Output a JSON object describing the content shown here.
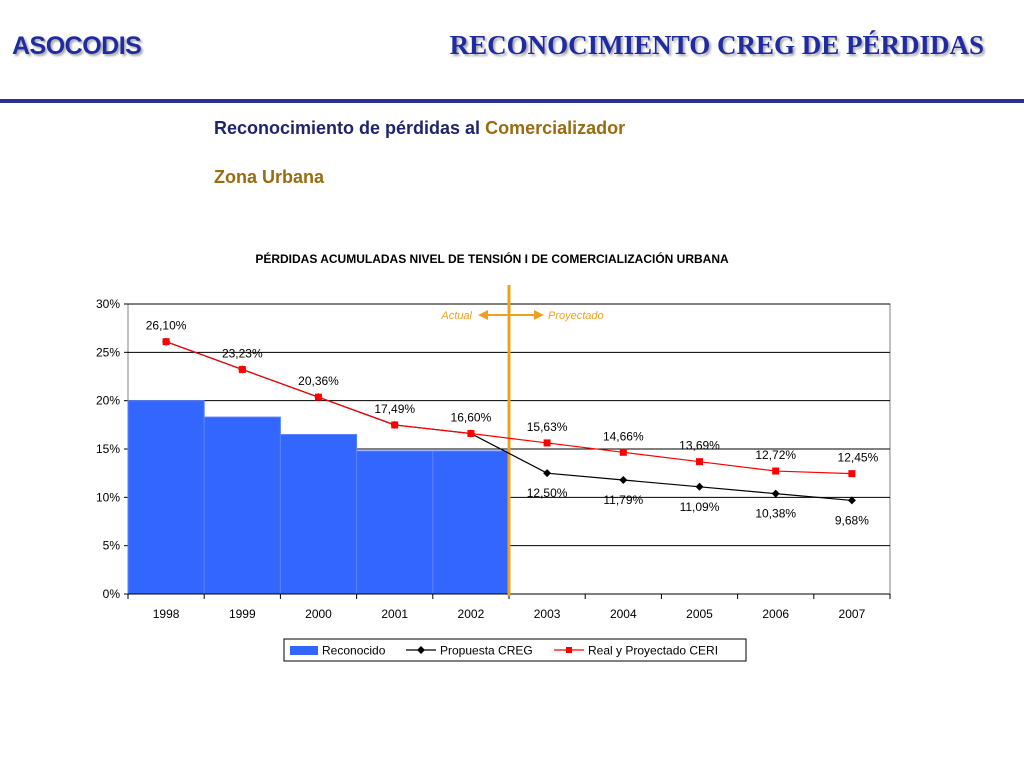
{
  "header": {
    "brand": "ASOCODIS",
    "title": "RECONOCIMIENTO CREG DE PÉRDIDAS"
  },
  "subtitle": {
    "prefix": "Reconocimiento de pérdidas al ",
    "accent": "Comercializador"
  },
  "zone": "Zona Urbana",
  "colors": {
    "brand": "#1f2ba0",
    "accent": "#9a6b10",
    "bars": "#3366ff",
    "creg": "#000000",
    "ceri": "#ff0000",
    "divider": "#f0a020"
  },
  "chart_data": {
    "type": "bar+line",
    "title": "PÉRDIDAS ACUMULADAS  NIVEL DE TENSIÓN I DE COMERCIALIZACIÓN URBANA",
    "categories": [
      "1998",
      "1999",
      "2000",
      "2001",
      "2002",
      "2003",
      "2004",
      "2005",
      "2006",
      "2007"
    ],
    "ylim": [
      0,
      30
    ],
    "yticks": [
      "0%",
      "5%",
      "10%",
      "15%",
      "20%",
      "25%",
      "30%"
    ],
    "grid": true,
    "legend_position": "bottom",
    "divider_after_category": "2002",
    "divider_left_label": "Actual",
    "divider_right_label": "Proyectado",
    "series": [
      {
        "name": "Reconocido",
        "kind": "bar",
        "values": [
          20.0,
          18.3,
          16.5,
          14.8,
          14.8,
          null,
          null,
          null,
          null,
          null
        ]
      },
      {
        "name": "Propuesta CREG",
        "kind": "line",
        "marker": "diamond",
        "values": [
          26.1,
          23.23,
          20.36,
          17.49,
          16.6,
          12.5,
          11.79,
          11.09,
          10.38,
          9.68
        ],
        "labels": [
          null,
          null,
          null,
          null,
          null,
          "12,50%",
          "11,79%",
          "11,09%",
          "10,38%",
          "9,68%"
        ]
      },
      {
        "name": "Real y Proyectado CERI",
        "kind": "line",
        "marker": "square",
        "values": [
          26.1,
          23.23,
          20.36,
          17.49,
          16.6,
          15.63,
          14.66,
          13.69,
          12.72,
          12.45
        ],
        "labels": [
          "26,10%",
          "23,23%",
          "20,36%",
          "17,49%",
          "16,60%",
          "15,63%",
          "14,66%",
          "13,69%",
          "12,72%",
          "12,45%"
        ]
      }
    ]
  }
}
